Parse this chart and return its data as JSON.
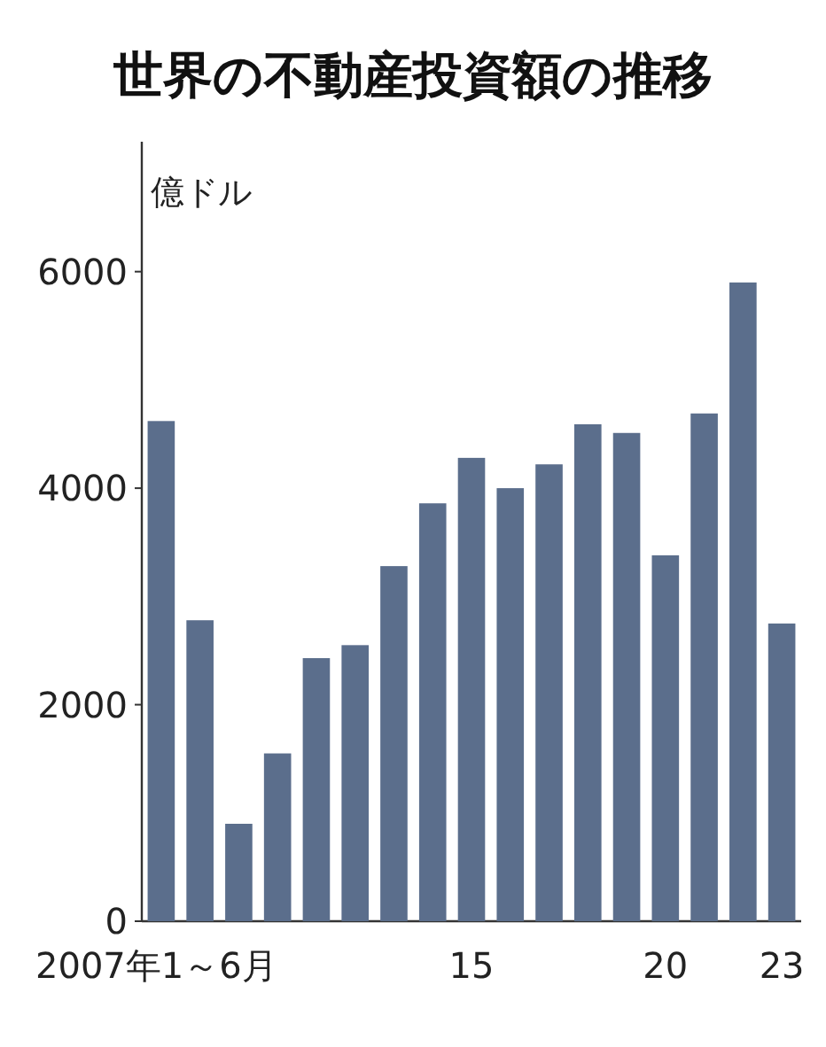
{
  "chart_data": {
    "type": "bar",
    "title": "世界の不動産投資額の推移",
    "ylabel": "億ドル",
    "categories": [
      "2007年1～6月",
      null,
      null,
      null,
      null,
      null,
      null,
      null,
      "15",
      null,
      null,
      null,
      null,
      "20",
      null,
      null,
      "23"
    ],
    "values": [
      4620,
      2780,
      900,
      1550,
      2430,
      2550,
      3280,
      3860,
      4280,
      4000,
      4220,
      4590,
      4510,
      3380,
      4690,
      5900,
      2750
    ],
    "color": "#5b6e8c",
    "ylim": [
      0,
      7200
    ],
    "yticks": [
      0,
      2000,
      4000,
      6000
    ]
  }
}
